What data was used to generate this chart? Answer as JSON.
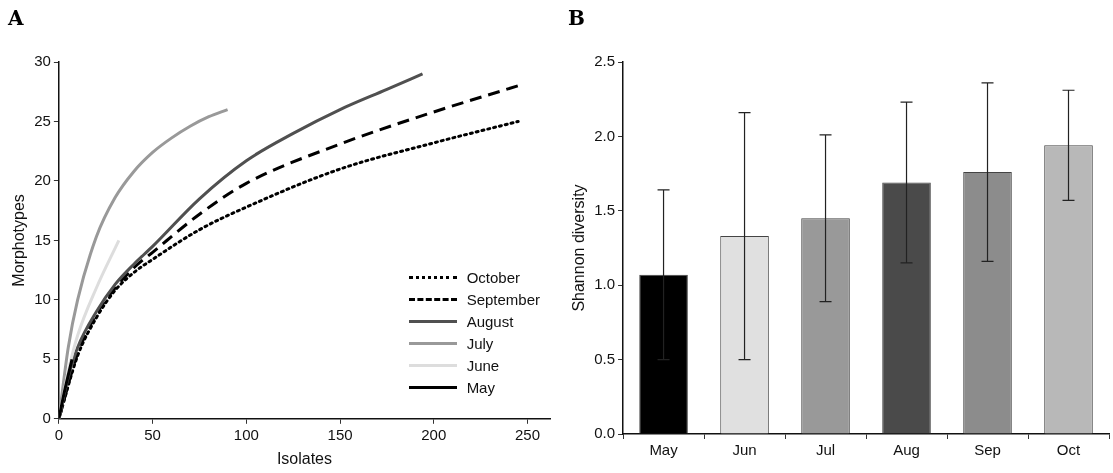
{
  "chart_data": [
    {
      "type": "line",
      "title": "A",
      "xlabel": "Isolates",
      "ylabel": "Morphotypes",
      "xlim": [
        0,
        262
      ],
      "xticks": [
        0,
        50,
        100,
        150,
        200,
        250
      ],
      "ylim": [
        0,
        30
      ],
      "yticks": [
        0,
        5,
        10,
        15,
        20,
        25,
        30
      ],
      "grid": false,
      "legend": "bottom right",
      "marker": "none",
      "series": [
        {
          "name": "October",
          "color": "#000000",
          "line_style": "dotted",
          "x": [
            0,
            10,
            20,
            30,
            40,
            50,
            75,
            100,
            150,
            200,
            245
          ],
          "values": [
            0,
            5.3,
            8.5,
            10.8,
            12.3,
            13.4,
            15.9,
            17.8,
            21,
            23.2,
            25
          ]
        },
        {
          "name": "September",
          "color": "#000000",
          "line_style": "dashed",
          "x": [
            0,
            10,
            20,
            30,
            40,
            50,
            75,
            100,
            150,
            200,
            245
          ],
          "values": [
            0,
            5.5,
            8.8,
            11,
            12.7,
            14,
            17.2,
            19.8,
            23.1,
            25.8,
            28
          ]
        },
        {
          "name": "August",
          "color": "#505050",
          "line_style": "solid",
          "x": [
            0,
            5,
            10,
            20,
            30,
            40,
            50,
            75,
            100,
            125,
            150,
            175,
            194
          ],
          "values": [
            0,
            3.5,
            6,
            9,
            11.3,
            13,
            14.5,
            18.5,
            21.7,
            24,
            26,
            27.7,
            29
          ]
        },
        {
          "name": "July",
          "color": "#999999",
          "line_style": "solid",
          "x": [
            0,
            5,
            10,
            20,
            30,
            40,
            50,
            60,
            70,
            80,
            90
          ],
          "values": [
            0,
            6,
            10,
            15.3,
            18.6,
            20.8,
            22.4,
            23.6,
            24.6,
            25.4,
            26
          ]
        },
        {
          "name": "June",
          "color": "#dddddd",
          "line_style": "solid",
          "x": [
            0,
            5,
            10,
            20,
            32
          ],
          "values": [
            0,
            4,
            7,
            11,
            15
          ]
        },
        {
          "name": "May",
          "color": "#000000",
          "line_style": "solid",
          "x": [
            0,
            3,
            7
          ],
          "values": [
            0,
            2.3,
            5
          ]
        }
      ]
    },
    {
      "type": "bar",
      "title": "B",
      "ylabel": "Shannon diversity",
      "categories": [
        "May",
        "Jun",
        "Jul",
        "Aug",
        "Sep",
        "Oct"
      ],
      "values": [
        1.07,
        1.33,
        1.45,
        1.69,
        1.76,
        1.94
      ],
      "errors": [
        0.57,
        0.83,
        0.56,
        0.54,
        0.6,
        0.37
      ],
      "colors": [
        "#000000",
        "#e0e0e0",
        "#999999",
        "#4a4a4a",
        "#8c8c8c",
        "#b8b8b8"
      ],
      "ylim": [
        0,
        2.5
      ],
      "yticks": [
        {
          "value": 0,
          "label": "0.0"
        },
        {
          "value": 0.5,
          "label": "0.5"
        },
        {
          "value": 1,
          "label": "1.0"
        },
        {
          "value": 1.5,
          "label": "1.5"
        },
        {
          "value": 2,
          "label": "2.0"
        },
        {
          "value": 2.5,
          "label": "2.5"
        }
      ],
      "grid": false,
      "legend": false
    }
  ]
}
